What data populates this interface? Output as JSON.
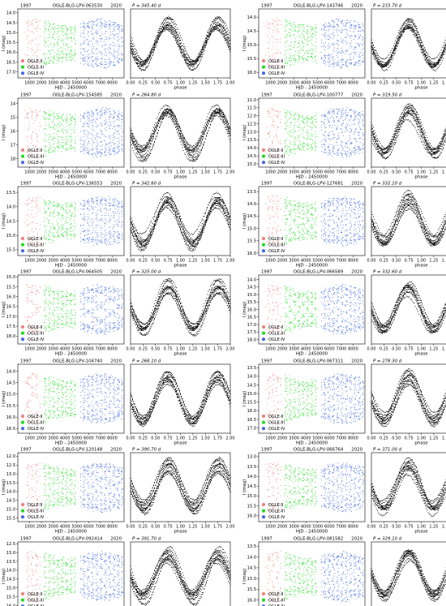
{
  "figure": {
    "xlabel_time": "HJD - 2450000",
    "xlabel_phase": "phase",
    "ylabel": "I (mag)",
    "year_start": "1997",
    "year_end": "2020",
    "time_ticks": [
      1000,
      2000,
      3000,
      4000,
      5000,
      6000,
      7000,
      8000
    ],
    "phase_ticks": [
      "0.00",
      "0.25",
      "0.50",
      "0.75",
      "1.00",
      "1.25",
      "1.50",
      "1.75",
      "2.00"
    ],
    "legend": [
      {
        "label": "OGLE-II",
        "color": "#f08080"
      },
      {
        "label": "OGLE-III",
        "color": "#22dd22"
      },
      {
        "label": "OGLE-IV",
        "color": "#4169e1"
      }
    ]
  },
  "chart_data": [
    {
      "type": "scatter",
      "title": "OGLE-BLG-LPV-063530",
      "period": "P = 345.40 d",
      "ylim": [
        17.3,
        13.8
      ],
      "yticks": [
        "14.0",
        "14.5",
        "15.0",
        "15.5",
        "16.0",
        "16.5",
        "17.0"
      ]
    },
    {
      "type": "scatter",
      "title": "OGLE-BLG-LPV-143746",
      "period": "P = 233.70 d",
      "ylim": [
        16.2,
        13.7
      ],
      "yticks": [
        "14.0",
        "14.5",
        "15.0",
        "15.5",
        "16.0"
      ]
    },
    {
      "type": "scatter",
      "title": "OGLE-BLG-LPV-154585",
      "period": "P = 264.80 d",
      "ylim": [
        18.6,
        13.6
      ],
      "yticks": [
        "14",
        "15",
        "16",
        "17",
        "18"
      ]
    },
    {
      "type": "scatter",
      "title": "OGLE-BLG-LPV-100777",
      "period": "P = 319.50 d",
      "ylim": [
        15.2,
        10.9
      ],
      "yticks": [
        "11.0",
        "11.5",
        "12.0",
        "12.5",
        "13.0",
        "13.5",
        "14.0",
        "14.5",
        "15.0"
      ]
    },
    {
      "type": "scatter",
      "title": "OGLE-BLG-LPV-136553",
      "period": "P = 342.60 d",
      "ylim": [
        15.7,
        13.3
      ],
      "yticks": [
        "13.5",
        "14.0",
        "14.5",
        "15.0",
        "15.5"
      ]
    },
    {
      "type": "scatter",
      "title": "OGLE-BLG-LPV-127681",
      "period": "P = 332.10 d",
      "ylim": [
        16.1,
        13.3
      ],
      "yticks": [
        "13.5",
        "14.0",
        "14.5",
        "15.0",
        "15.5",
        "16.0"
      ]
    },
    {
      "type": "scatter",
      "title": "OGLE-BLG-LPV-064505",
      "period": "P = 325.00 d",
      "ylim": [
        18.4,
        14.9
      ],
      "yticks": [
        "15.0",
        "15.5",
        "16.0",
        "16.5",
        "17.0",
        "17.5",
        "18.0"
      ]
    },
    {
      "type": "scatter",
      "title": "OGLE-BLG-LPV-066589",
      "period": "P = 332.60 d",
      "ylim": [
        18.3,
        13.7
      ],
      "yticks": [
        "14.0",
        "14.5",
        "15.0",
        "15.5",
        "16.0",
        "16.5",
        "17.0",
        "17.5",
        "18.0"
      ]
    },
    {
      "type": "scatter",
      "title": "OGLE-BLG-LPV-104740",
      "period": "P = 268.10 d",
      "ylim": [
        16.7,
        13.7
      ],
      "yticks": [
        "14.0",
        "14.5",
        "15.0",
        "15.5",
        "16.0",
        "16.5"
      ]
    },
    {
      "type": "scatter",
      "title": "OGLE-BLG-LPV-067311",
      "period": "P = 278.30 d",
      "ylim": [
        17.3,
        13.3
      ],
      "yticks": [
        "13.5",
        "14.0",
        "14.5",
        "15.0",
        "15.5",
        "16.0",
        "16.5",
        "17.0"
      ]
    },
    {
      "type": "scatter",
      "title": "OGLE-BLG-LPV-120148",
      "period": "P = 390.70 d",
      "ylim": [
        15.7,
        11.8
      ],
      "yticks": [
        "12.0",
        "12.5",
        "13.0",
        "13.5",
        "14.0",
        "14.5",
        "15.0",
        "15.5"
      ]
    },
    {
      "type": "scatter",
      "title": "OGLE-BLG-LPV-066764",
      "period": "P = 371.00 d",
      "ylim": [
        16.3,
        12.8
      ],
      "yticks": [
        "13.0",
        "13.5",
        "14.0",
        "14.5",
        "15.0",
        "15.5",
        "16.0"
      ]
    },
    {
      "type": "scatter",
      "title": "OGLE-BLG-LPV-092414",
      "period": "P = 391.70 d",
      "ylim": [
        16.3,
        12.4
      ],
      "yticks": [
        "12.5",
        "13.0",
        "13.5",
        "14.0",
        "14.5",
        "15.0",
        "15.5",
        "16.0"
      ]
    },
    {
      "type": "scatter",
      "title": "OGLE-BLG-LPV-081582",
      "period": "P = 329.10 d",
      "ylim": [
        16.5,
        13.3
      ],
      "yticks": [
        "13.5",
        "14.0",
        "14.5",
        "15.0",
        "15.5",
        "16.0"
      ]
    }
  ]
}
